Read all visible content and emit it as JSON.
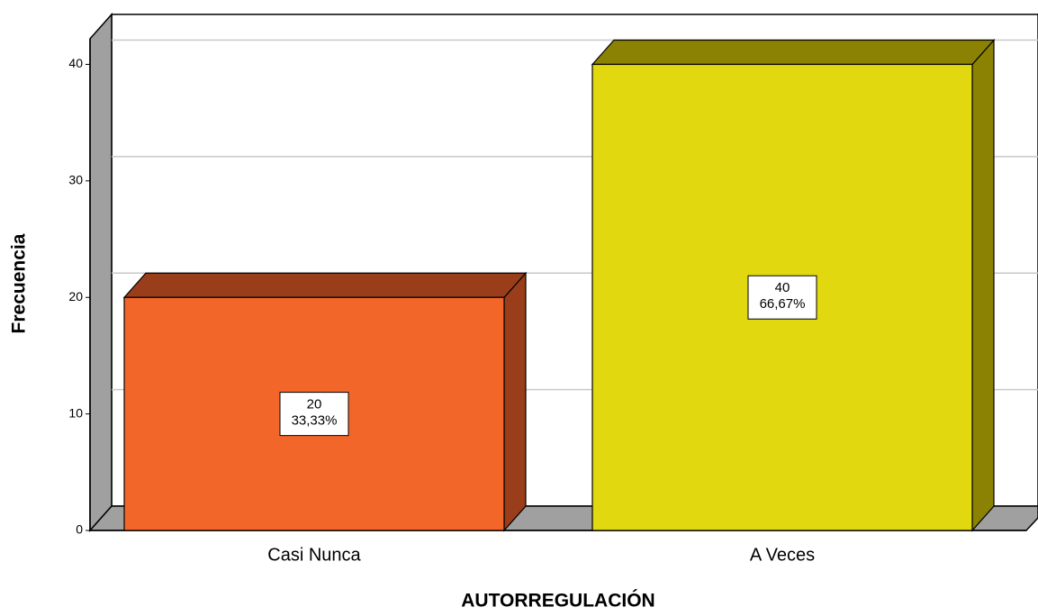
{
  "chart_data": {
    "type": "bar3d",
    "x_label": "AUTORREGULACIÓN",
    "y_label": "Frecuencia",
    "categories": [
      "Casi Nunca",
      "A Veces"
    ],
    "values": [
      20,
      40
    ],
    "percentages": [
      33.33,
      66.67
    ],
    "percentage_labels": [
      "33,33%",
      "66,67%"
    ],
    "colors": [
      "#f26729",
      "#e2d810"
    ],
    "side_colors": [
      "#9a3d1a",
      "#8b8204"
    ],
    "ylim": [
      0,
      42.2
    ],
    "yticks": [
      0,
      10,
      20,
      30,
      40
    ],
    "grid": true
  }
}
